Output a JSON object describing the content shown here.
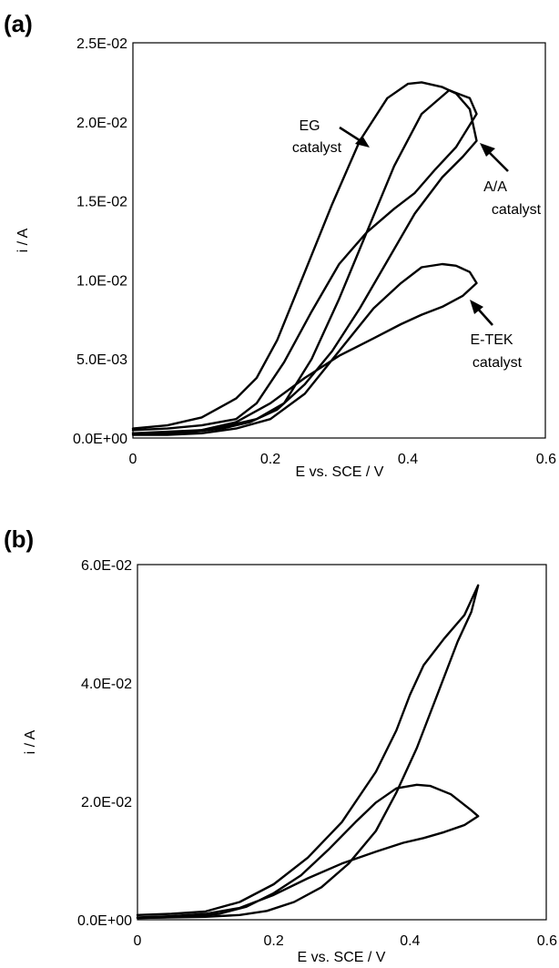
{
  "chart_data": [
    {
      "panel": "(a)",
      "type": "line",
      "xlabel": "E vs. SCE / V",
      "ylabel": "i / A",
      "xlim": [
        0,
        0.6
      ],
      "ylim": [
        0,
        0.025
      ],
      "xticks": [
        0,
        0.2,
        0.4,
        0.6
      ],
      "xtick_labels": [
        "0",
        "0.2",
        "0.4",
        "0.6"
      ],
      "yticks": [
        0,
        0.005,
        0.01,
        0.015,
        0.02,
        0.025
      ],
      "ytick_labels": [
        "0.0E+00",
        "5.0E-03",
        "1.0E-02",
        "1.5E-02",
        "2.0E-02",
        "2.5E-02"
      ],
      "grid": false,
      "series": [
        {
          "x": [
            0,
            0.05,
            0.1,
            0.15,
            0.18,
            0.22,
            0.26,
            0.3,
            0.34,
            0.38,
            0.41,
            0.44,
            0.47,
            0.5,
            0.49,
            0.46,
            0.42,
            0.38,
            0.34,
            0.3,
            0.26,
            0.22,
            0.18,
            0.14,
            0.1,
            0.05,
            0
          ],
          "y": [
            0.0005,
            0.0006,
            0.0008,
            0.0012,
            0.0022,
            0.0048,
            0.008,
            0.011,
            0.013,
            0.0145,
            0.0155,
            0.017,
            0.0184,
            0.0205,
            0.0215,
            0.022,
            0.0205,
            0.0172,
            0.013,
            0.0088,
            0.005,
            0.0022,
            0.0012,
            0.0008,
            0.0005,
            0.0004,
            0.0003
          ]
        },
        {
          "x": [
            0,
            0.05,
            0.1,
            0.15,
            0.18,
            0.21,
            0.25,
            0.29,
            0.33,
            0.37,
            0.4,
            0.42,
            0.45,
            0.47,
            0.49,
            0.5,
            0.48,
            0.45,
            0.41,
            0.37,
            0.33,
            0.29,
            0.25,
            0.21,
            0.17,
            0.13,
            0.09,
            0.05,
            0
          ],
          "y": [
            0.0006,
            0.0008,
            0.0013,
            0.0025,
            0.0038,
            0.0062,
            0.0105,
            0.0148,
            0.0188,
            0.0215,
            0.0224,
            0.0225,
            0.0222,
            0.0218,
            0.0208,
            0.0188,
            0.0178,
            0.0165,
            0.0142,
            0.0112,
            0.0082,
            0.0055,
            0.0034,
            0.0018,
            0.001,
            0.0006,
            0.0004,
            0.0003,
            0.0003
          ]
        },
        {
          "x": [
            0,
            0.05,
            0.1,
            0.15,
            0.2,
            0.25,
            0.3,
            0.35,
            0.39,
            0.42,
            0.45,
            0.48,
            0.5,
            0.49,
            0.47,
            0.45,
            0.42,
            0.39,
            0.35,
            0.3,
            0.25,
            0.2,
            0.15,
            0.1,
            0.05,
            0
          ],
          "y": [
            0.0002,
            0.0003,
            0.0005,
            0.001,
            0.0022,
            0.0038,
            0.0052,
            0.0063,
            0.0072,
            0.0078,
            0.0083,
            0.009,
            0.0098,
            0.0105,
            0.0109,
            0.011,
            0.0108,
            0.0098,
            0.0082,
            0.0055,
            0.0028,
            0.0012,
            0.0006,
            0.0003,
            0.0002,
            0.0002
          ]
        }
      ],
      "annotations": [
        {
          "lines": [
            "EG",
            "catalyst"
          ]
        },
        {
          "lines": [
            "A/A",
            "catalyst"
          ]
        },
        {
          "lines": [
            "E-TEK",
            "catalyst"
          ]
        }
      ]
    },
    {
      "panel": "(b)",
      "type": "line",
      "xlabel": "E vs. SCE / V",
      "ylabel": "i / A",
      "xlim": [
        0,
        0.6
      ],
      "ylim": [
        0,
        0.06
      ],
      "xticks": [
        0,
        0.2,
        0.4,
        0.6
      ],
      "xtick_labels": [
        "0",
        "0.2",
        "0.4",
        "0.6"
      ],
      "yticks": [
        0,
        0.02,
        0.04,
        0.06
      ],
      "ytick_labels": [
        "0.0E+00",
        "2.0E-02",
        "4.0E-02",
        "6.0E-02"
      ],
      "grid": false,
      "series": [
        {
          "x": [
            0,
            0.05,
            0.1,
            0.15,
            0.2,
            0.25,
            0.3,
            0.35,
            0.38,
            0.4,
            0.42,
            0.45,
            0.48,
            0.5,
            0.49,
            0.47,
            0.44,
            0.41,
            0.38,
            0.35,
            0.31,
            0.27,
            0.23,
            0.19,
            0.15,
            0.1,
            0.05,
            0
          ],
          "y": [
            0.0008,
            0.001,
            0.0014,
            0.003,
            0.006,
            0.0105,
            0.0165,
            0.025,
            0.032,
            0.038,
            0.043,
            0.0475,
            0.0515,
            0.0565,
            0.052,
            0.047,
            0.038,
            0.029,
            0.0215,
            0.015,
            0.0095,
            0.0055,
            0.003,
            0.0015,
            0.0008,
            0.0005,
            0.0004,
            0.0003
          ]
        },
        {
          "x": [
            0,
            0.05,
            0.1,
            0.15,
            0.2,
            0.25,
            0.3,
            0.35,
            0.39,
            0.42,
            0.45,
            0.48,
            0.5,
            0.49,
            0.46,
            0.43,
            0.41,
            0.38,
            0.35,
            0.32,
            0.28,
            0.24,
            0.2,
            0.16,
            0.12,
            0.08,
            0.04,
            0
          ],
          "y": [
            0.0004,
            0.0006,
            0.001,
            0.002,
            0.0042,
            0.007,
            0.0095,
            0.0115,
            0.013,
            0.0138,
            0.0148,
            0.016,
            0.0175,
            0.0185,
            0.0212,
            0.0226,
            0.0228,
            0.0222,
            0.0198,
            0.0165,
            0.0118,
            0.0075,
            0.0045,
            0.0022,
            0.001,
            0.0006,
            0.0004,
            0.0003
          ]
        }
      ],
      "annotations": []
    }
  ]
}
